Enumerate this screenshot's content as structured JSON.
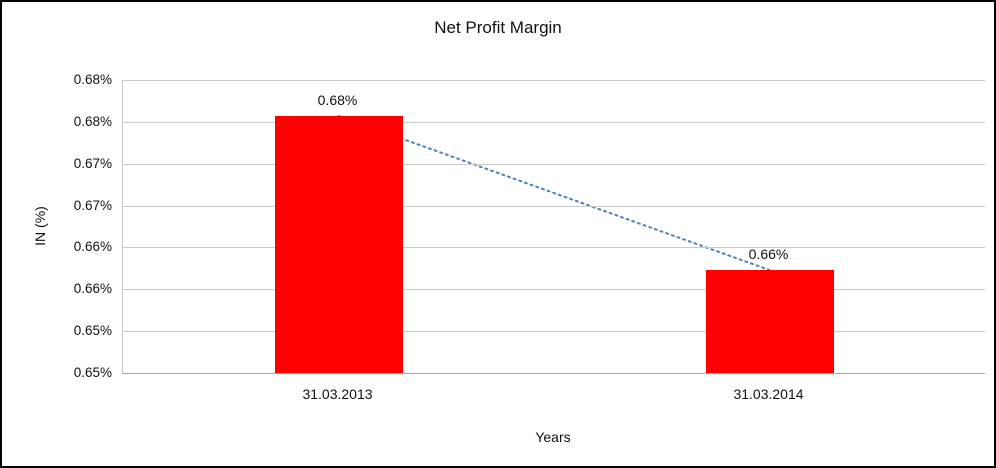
{
  "chart_data": {
    "type": "bar",
    "title": "Net Profit Margin",
    "xlabel": "Years",
    "ylabel": "IN (%)",
    "categories": [
      "31.03.2013",
      "31.03.2014"
    ],
    "values": [
      0.6757,
      0.6573
    ],
    "data_labels": [
      "0.68%",
      "0.66%"
    ],
    "ylim": [
      0.645,
      0.68
    ],
    "y_ticks": [
      {
        "value": 0.645,
        "label": "0.65%"
      },
      {
        "value": 0.65,
        "label": "0.65%"
      },
      {
        "value": 0.655,
        "label": "0.66%"
      },
      {
        "value": 0.66,
        "label": "0.66%"
      },
      {
        "value": 0.665,
        "label": "0.67%"
      },
      {
        "value": 0.67,
        "label": "0.67%"
      },
      {
        "value": 0.675,
        "label": "0.68%"
      },
      {
        "value": 0.68,
        "label": "0.68%"
      }
    ],
    "grid": true,
    "legend": "none",
    "bar_color": "#FF0000",
    "trendline": {
      "style": "dotted",
      "color": "#4F81BD"
    }
  }
}
